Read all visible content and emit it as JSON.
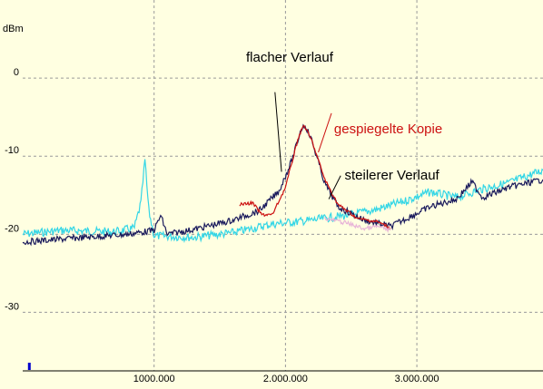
{
  "chart_data": {
    "type": "line",
    "ylabel": "dBm",
    "xlim": [
      0,
      3960000
    ],
    "ylim": [
      -37.5,
      10
    ],
    "grid": true,
    "x_ticks": [
      {
        "value": 1000000,
        "label": "1000.000"
      },
      {
        "value": 2000000,
        "label": "2.000.000"
      },
      {
        "value": 3000000,
        "label": "3.000.000"
      }
    ],
    "y_ticks": [
      {
        "value": 0,
        "label": "0"
      },
      {
        "value": -10,
        "label": "-10"
      },
      {
        "value": -20,
        "label": "-20"
      },
      {
        "value": -30,
        "label": "-30"
      }
    ],
    "series": [
      {
        "color": "#33d6e6",
        "noise": 0.8,
        "x": [
          0,
          300000,
          700000,
          850000,
          900000,
          930000,
          960000,
          1000000,
          1300000,
          1600000,
          1900000,
          2200000,
          2500000,
          2700000,
          2900000,
          3100000,
          3300000,
          3500000,
          3700000,
          3960000
        ],
        "y": [
          -20,
          -19.5,
          -19.7,
          -19.2,
          -16,
          -10.5,
          -17,
          -20.2,
          -20.4,
          -19.8,
          -18.7,
          -18.2,
          -17.5,
          -16.8,
          -15.8,
          -14.6,
          -15.3,
          -14.2,
          -13.4,
          -11.8
        ]
      },
      {
        "color": "#1a1a5c",
        "noise": 0.6,
        "x": [
          0,
          400000,
          800000,
          1000000,
          1050000,
          1100000,
          1300000,
          1600000,
          1800000,
          1950000,
          2050000,
          2120000,
          2150000,
          2200000,
          2300000,
          2400000,
          2600000,
          2800000,
          3100000,
          3300000,
          3420000,
          3500000,
          3700000,
          3960000
        ],
        "y": [
          -21,
          -20.5,
          -20,
          -19.5,
          -17.6,
          -20,
          -19.4,
          -18.2,
          -17,
          -14.5,
          -10.5,
          -6.5,
          -6,
          -8,
          -13.5,
          -16.5,
          -18.2,
          -19,
          -16.5,
          -15.5,
          -13.3,
          -15.3,
          -14,
          -13
        ]
      },
      {
        "color": "#cc1111",
        "noise": 0.3,
        "x": [
          1650000,
          1750000,
          1820000,
          1900000,
          2000000,
          2100000,
          2140000,
          2200000,
          2300000,
          2400000,
          2550000,
          2700000,
          2800000
        ],
        "y": [
          -16.2,
          -16,
          -17.5,
          -17.5,
          -14,
          -7.5,
          -6,
          -8,
          -13,
          -16.2,
          -18,
          -18.4,
          -19.2
        ]
      },
      {
        "color": "#e8b4d8",
        "noise": 0.4,
        "x": [
          2300000,
          2450000,
          2600000,
          2700000,
          2800000
        ],
        "y": [
          -18,
          -18.5,
          -19.3,
          -19,
          -19.5
        ]
      }
    ],
    "annotations": [
      {
        "text": "flacher Verlauf",
        "color": "#000000",
        "x": 1700000,
        "y": 2.1
      },
      {
        "text": "gespiegelte Kopie",
        "color": "#cc1111",
        "x": 2370000,
        "y": -7.1
      },
      {
        "text": "steilerer Verlauf",
        "color": "#000000",
        "x": 2450000,
        "y": -13
      }
    ],
    "marker": {
      "color": "#0000cc",
      "x": 40000
    }
  }
}
